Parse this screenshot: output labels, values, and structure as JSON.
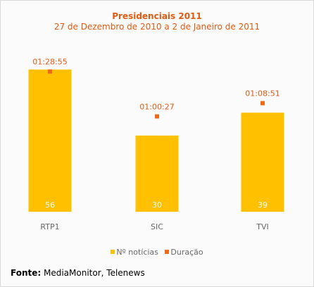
{
  "colors": {
    "title": "#e05a10",
    "bar": "#ffc000",
    "marker": "#ee6a1a",
    "label": "#e05a10",
    "value_in_bar": "#ffffff",
    "axis_text": "#666666"
  },
  "chart_data": {
    "type": "bar",
    "title": "Presidenciais 2011",
    "subtitle": "27 de Dezembro de 2010 a 2 de Janeiro de 2011",
    "categories": [
      "RTP1",
      "SIC",
      "TVI"
    ],
    "series": [
      {
        "name": "Nº notícias",
        "type": "bar",
        "values": [
          56,
          30,
          39
        ]
      },
      {
        "name": "Duração",
        "type": "marker",
        "values": [
          "01:28:55",
          "01:00:27",
          "01:08:51"
        ],
        "values_seconds": [
          5335,
          3627,
          4131
        ]
      }
    ],
    "ylim_bars": [
      0,
      59
    ],
    "ylim_duration_seconds": [
      0,
      5700
    ],
    "legend_position": "bottom",
    "grid": false
  },
  "legend": {
    "items": [
      {
        "label": "Nº notícias",
        "color": "#ffc000"
      },
      {
        "label": "Duração",
        "color": "#ee6a1a"
      }
    ]
  },
  "source": {
    "prefix": "Fonte:",
    "text": " MediaMonitor, Telenews"
  }
}
